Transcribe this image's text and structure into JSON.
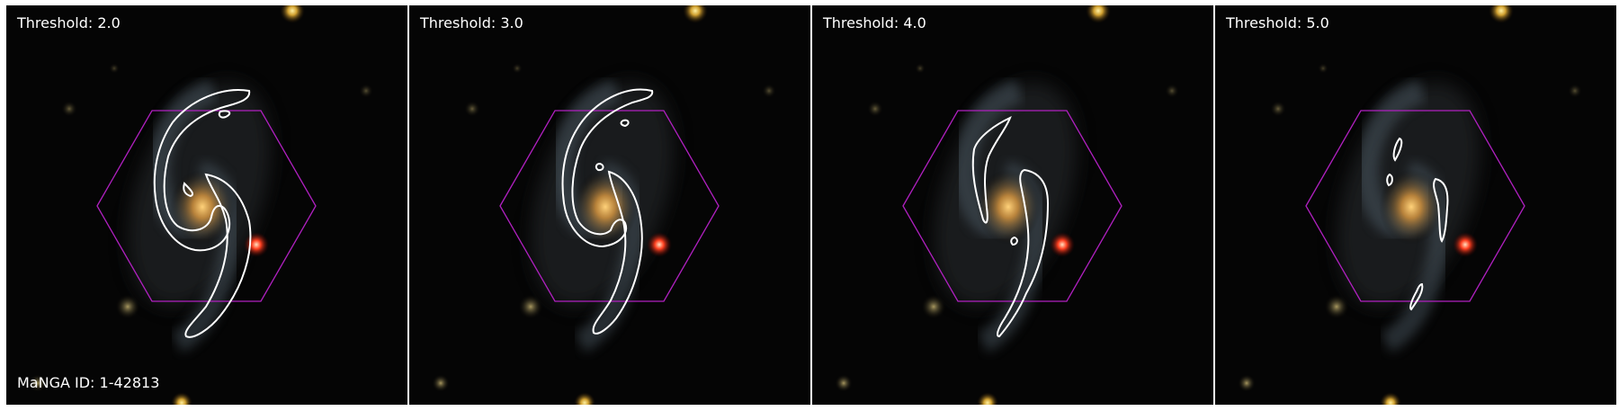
{
  "panels": [
    {
      "threshold_label": "Threshold: 2.0"
    },
    {
      "threshold_label": "Threshold: 3.0"
    },
    {
      "threshold_label": "Threshold: 4.0"
    },
    {
      "threshold_label": "Threshold: 5.0"
    }
  ],
  "manga_id_label": "MaNGA ID: 1-42813",
  "colors": {
    "hexagon": "#b020c0",
    "contour": "#ffffff",
    "background": "#050505"
  }
}
